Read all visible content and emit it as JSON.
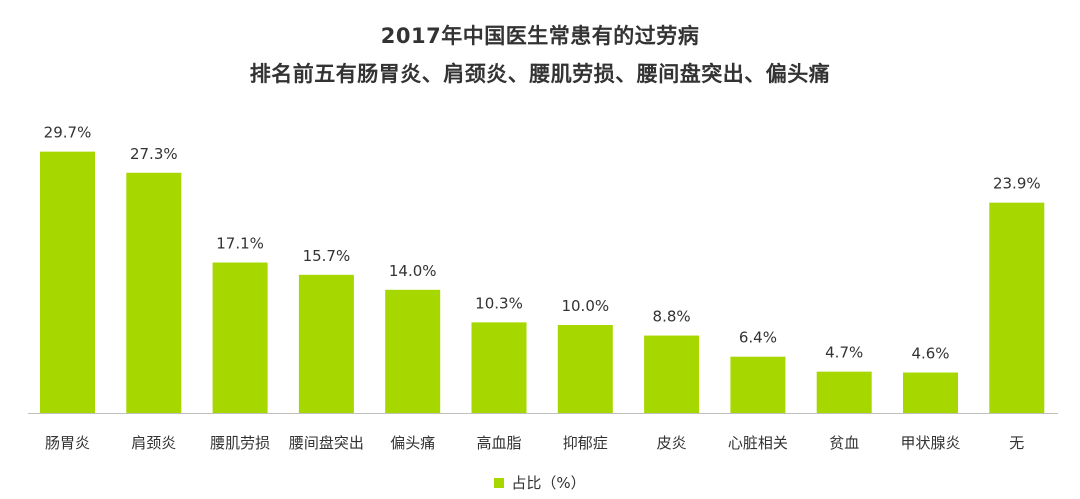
{
  "chart_data": {
    "type": "bar",
    "title": "2017年中国医生常患有的过劳病",
    "subtitle": "排名前五有肠胃炎、肩颈炎、腰肌劳损、腰间盘突出、偏头痛",
    "categories": [
      "肠胃炎",
      "肩颈炎",
      "腰肌劳损",
      "腰间盘突出",
      "偏头痛",
      "高血脂",
      "抑郁症",
      "皮炎",
      "心脏相关",
      "贫血",
      "甲状腺炎",
      "无"
    ],
    "series": [
      {
        "name": "占比（%）",
        "values": [
          29.7,
          27.3,
          17.1,
          15.7,
          14.0,
          10.3,
          10.0,
          8.8,
          6.4,
          4.7,
          4.6,
          23.9
        ],
        "labels": [
          "29.7%",
          "27.3%",
          "17.1%",
          "15.7%",
          "14.0%",
          "10.3%",
          "10.0%",
          "8.8%",
          "6.4%",
          "4.7%",
          "4.6%",
          "23.9%"
        ]
      }
    ],
    "ylim": [
      0,
      30
    ],
    "grid": false,
    "legend_position": "bottom",
    "bar_color": "#A6D800",
    "axis_color": "#BFBFBF"
  }
}
